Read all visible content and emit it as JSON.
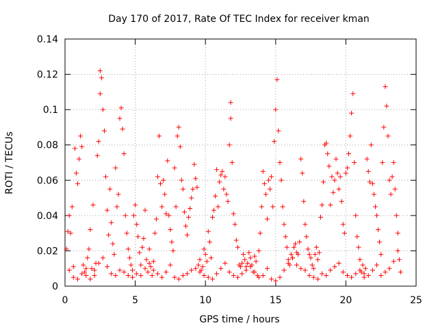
{
  "chart_data": {
    "type": "scatter",
    "title": "Day 170 of 2017, Rate Of TEC Index for receiver kman",
    "xlabel": "GPS time / hours",
    "ylabel": "ROTI / TECUs",
    "xlim": [
      0,
      25
    ],
    "ylim": [
      0,
      0.14
    ],
    "x_ticks": [
      "0",
      "5",
      "10",
      "15",
      "20",
      "25"
    ],
    "y_ticks": [
      "0",
      "0.02",
      "0.04",
      "0.06",
      "0.08",
      "0.1",
      "0.12",
      "0.14"
    ],
    "grid": true,
    "marker": "+",
    "color": "#ff0000",
    "points": [
      [
        0.1,
        0.021
      ],
      [
        0.2,
        0.031
      ],
      [
        0.3,
        0.04
      ],
      [
        0.4,
        0.03
      ],
      [
        0.5,
        0.045
      ],
      [
        0.6,
        0.011
      ],
      [
        0.7,
        0.078
      ],
      [
        0.8,
        0.064
      ],
      [
        0.9,
        0.058
      ],
      [
        1.0,
        0.072
      ],
      [
        1.1,
        0.085
      ],
      [
        1.2,
        0.079
      ],
      [
        1.3,
        0.012
      ],
      [
        1.4,
        0.008
      ],
      [
        1.5,
        0.006
      ],
      [
        1.6,
        0.016
      ],
      [
        1.7,
        0.021
      ],
      [
        1.8,
        0.032
      ],
      [
        1.9,
        0.01
      ],
      [
        2.0,
        0.046
      ],
      [
        2.1,
        0.006
      ],
      [
        2.2,
        0.013
      ],
      [
        2.3,
        0.074
      ],
      [
        2.4,
        0.082
      ],
      [
        2.5,
        0.122
      ],
      [
        2.5,
        0.109
      ],
      [
        2.6,
        0.118
      ],
      [
        2.7,
        0.1
      ],
      [
        2.8,
        0.088
      ],
      [
        2.9,
        0.062
      ],
      [
        3.0,
        0.043
      ],
      [
        3.1,
        0.029
      ],
      [
        3.2,
        0.055
      ],
      [
        3.3,
        0.036
      ],
      [
        3.4,
        0.024
      ],
      [
        3.5,
        0.018
      ],
      [
        3.6,
        0.067
      ],
      [
        3.7,
        0.045
      ],
      [
        3.8,
        0.052
      ],
      [
        3.9,
        0.095
      ],
      [
        4.0,
        0.101
      ],
      [
        4.1,
        0.089
      ],
      [
        4.2,
        0.075
      ],
      [
        4.3,
        0.04
      ],
      [
        4.4,
        0.03
      ],
      [
        4.5,
        0.021
      ],
      [
        4.6,
        0.016
      ],
      [
        4.7,
        0.012
      ],
      [
        4.8,
        0.009
      ],
      [
        4.9,
        0.04
      ],
      [
        5.0,
        0.046
      ],
      [
        5.1,
        0.035
      ],
      [
        5.2,
        0.028
      ],
      [
        5.3,
        0.019
      ],
      [
        5.4,
        0.012
      ],
      [
        5.5,
        0.022
      ],
      [
        5.6,
        0.027
      ],
      [
        5.7,
        0.043
      ],
      [
        5.8,
        0.015
      ],
      [
        5.9,
        0.008
      ],
      [
        6.0,
        0.021
      ],
      [
        6.1,
        0.011
      ],
      [
        6.2,
        0.006
      ],
      [
        6.3,
        0.014
      ],
      [
        6.4,
        0.03
      ],
      [
        6.5,
        0.038
      ],
      [
        6.6,
        0.062
      ],
      [
        6.7,
        0.085
      ],
      [
        6.8,
        0.058
      ],
      [
        6.9,
        0.045
      ],
      [
        7.0,
        0.06
      ],
      [
        7.1,
        0.052
      ],
      [
        7.2,
        0.041
      ],
      [
        7.3,
        0.071
      ],
      [
        7.4,
        0.04
      ],
      [
        7.5,
        0.032
      ],
      [
        7.6,
        0.025
      ],
      [
        7.7,
        0.02
      ],
      [
        7.8,
        0.067
      ],
      [
        7.9,
        0.045
      ],
      [
        8.0,
        0.085
      ],
      [
        8.1,
        0.09
      ],
      [
        8.2,
        0.079
      ],
      [
        8.3,
        0.06
      ],
      [
        8.4,
        0.055
      ],
      [
        8.5,
        0.042
      ],
      [
        8.6,
        0.034
      ],
      [
        8.7,
        0.029
      ],
      [
        8.8,
        0.039
      ],
      [
        8.9,
        0.044
      ],
      [
        9.0,
        0.05
      ],
      [
        9.1,
        0.055
      ],
      [
        9.2,
        0.069
      ],
      [
        9.3,
        0.061
      ],
      [
        9.4,
        0.056
      ],
      [
        9.5,
        0.012
      ],
      [
        9.6,
        0.015
      ],
      [
        9.7,
        0.009
      ],
      [
        9.8,
        0.011
      ],
      [
        9.9,
        0.021
      ],
      [
        10.0,
        0.018
      ],
      [
        10.1,
        0.014
      ],
      [
        10.2,
        0.031
      ],
      [
        10.3,
        0.025
      ],
      [
        10.4,
        0.016
      ],
      [
        10.5,
        0.039
      ],
      [
        10.6,
        0.043
      ],
      [
        10.7,
        0.051
      ],
      [
        10.8,
        0.066
      ],
      [
        10.9,
        0.045
      ],
      [
        11.0,
        0.059
      ],
      [
        11.1,
        0.063
      ],
      [
        11.2,
        0.065
      ],
      [
        11.3,
        0.055
      ],
      [
        11.4,
        0.062
      ],
      [
        11.5,
        0.052
      ],
      [
        11.6,
        0.048
      ],
      [
        11.7,
        0.08
      ],
      [
        11.8,
        0.095
      ],
      [
        11.8,
        0.104
      ],
      [
        11.9,
        0.07
      ],
      [
        12.0,
        0.041
      ],
      [
        12.1,
        0.035
      ],
      [
        12.2,
        0.026
      ],
      [
        12.3,
        0.022
      ],
      [
        12.4,
        0.012
      ],
      [
        12.5,
        0.011
      ],
      [
        12.6,
        0.013
      ],
      [
        12.7,
        0.018
      ],
      [
        12.8,
        0.015
      ],
      [
        12.9,
        0.011
      ],
      [
        13.0,
        0.013
      ],
      [
        13.1,
        0.019
      ],
      [
        13.2,
        0.016
      ],
      [
        13.3,
        0.012
      ],
      [
        13.4,
        0.008
      ],
      [
        13.5,
        0.017
      ],
      [
        13.6,
        0.014
      ],
      [
        13.7,
        0.006
      ],
      [
        13.8,
        0.02
      ],
      [
        13.9,
        0.03
      ],
      [
        14.0,
        0.045
      ],
      [
        14.1,
        0.065
      ],
      [
        14.2,
        0.058
      ],
      [
        14.3,
        0.052
      ],
      [
        14.4,
        0.038
      ],
      [
        14.5,
        0.06
      ],
      [
        14.6,
        0.055
      ],
      [
        14.7,
        0.062
      ],
      [
        14.8,
        0.045
      ],
      [
        14.9,
        0.082
      ],
      [
        15.0,
        0.1
      ],
      [
        15.1,
        0.117
      ],
      [
        15.2,
        0.088
      ],
      [
        15.3,
        0.07
      ],
      [
        15.4,
        0.06
      ],
      [
        15.5,
        0.045
      ],
      [
        15.6,
        0.035
      ],
      [
        15.7,
        0.028
      ],
      [
        15.8,
        0.022
      ],
      [
        15.9,
        0.015
      ],
      [
        16.0,
        0.012
      ],
      [
        16.1,
        0.018
      ],
      [
        16.2,
        0.016
      ],
      [
        16.3,
        0.022
      ],
      [
        16.4,
        0.024
      ],
      [
        16.5,
        0.019
      ],
      [
        16.6,
        0.018
      ],
      [
        16.7,
        0.025
      ],
      [
        16.8,
        0.072
      ],
      [
        16.9,
        0.064
      ],
      [
        17.0,
        0.048
      ],
      [
        17.1,
        0.035
      ],
      [
        17.2,
        0.028
      ],
      [
        17.3,
        0.021
      ],
      [
        17.4,
        0.018
      ],
      [
        17.5,
        0.016
      ],
      [
        17.6,
        0.012
      ],
      [
        17.7,
        0.01
      ],
      [
        17.8,
        0.018
      ],
      [
        17.9,
        0.022
      ],
      [
        18.0,
        0.015
      ],
      [
        18.1,
        0.019
      ],
      [
        18.2,
        0.039
      ],
      [
        18.3,
        0.046
      ],
      [
        18.4,
        0.059
      ],
      [
        18.5,
        0.08
      ],
      [
        18.6,
        0.081
      ],
      [
        18.7,
        0.075
      ],
      [
        18.8,
        0.068
      ],
      [
        18.9,
        0.046
      ],
      [
        19.0,
        0.062
      ],
      [
        19.1,
        0.053
      ],
      [
        19.2,
        0.06
      ],
      [
        19.3,
        0.072
      ],
      [
        19.4,
        0.064
      ],
      [
        19.5,
        0.055
      ],
      [
        19.6,
        0.062
      ],
      [
        19.7,
        0.048
      ],
      [
        19.8,
        0.035
      ],
      [
        19.9,
        0.03
      ],
      [
        20.0,
        0.064
      ],
      [
        20.1,
        0.067
      ],
      [
        20.2,
        0.075
      ],
      [
        20.3,
        0.085
      ],
      [
        20.4,
        0.098
      ],
      [
        20.5,
        0.109
      ],
      [
        20.6,
        0.07
      ],
      [
        20.7,
        0.04
      ],
      [
        20.8,
        0.028
      ],
      [
        20.9,
        0.022
      ],
      [
        21.0,
        0.015
      ],
      [
        21.1,
        0.008
      ],
      [
        21.2,
        0.012
      ],
      [
        21.3,
        0.007
      ],
      [
        21.4,
        0.01
      ],
      [
        21.5,
        0.072
      ],
      [
        21.6,
        0.065
      ],
      [
        21.7,
        0.059
      ],
      [
        21.8,
        0.08
      ],
      [
        21.9,
        0.058
      ],
      [
        22.0,
        0.052
      ],
      [
        22.1,
        0.045
      ],
      [
        22.2,
        0.04
      ],
      [
        22.3,
        0.032
      ],
      [
        22.4,
        0.025
      ],
      [
        22.5,
        0.018
      ],
      [
        22.6,
        0.07
      ],
      [
        22.7,
        0.09
      ],
      [
        22.8,
        0.113
      ],
      [
        22.9,
        0.102
      ],
      [
        23.0,
        0.085
      ],
      [
        23.1,
        0.06
      ],
      [
        23.2,
        0.052
      ],
      [
        23.3,
        0.062
      ],
      [
        23.4,
        0.07
      ],
      [
        23.5,
        0.055
      ],
      [
        23.6,
        0.04
      ],
      [
        23.7,
        0.03
      ],
      [
        23.8,
        0.015
      ],
      [
        23.9,
        0.008
      ],
      [
        0.3,
        0.009
      ],
      [
        0.6,
        0.005
      ],
      [
        0.9,
        0.004
      ],
      [
        1.2,
        0.007
      ],
      [
        1.5,
        0.01
      ],
      [
        1.8,
        0.004
      ],
      [
        2.1,
        0.009
      ],
      [
        2.4,
        0.013
      ],
      [
        2.7,
        0.016
      ],
      [
        3.0,
        0.011
      ],
      [
        3.3,
        0.007
      ],
      [
        3.6,
        0.006
      ],
      [
        3.9,
        0.009
      ],
      [
        4.2,
        0.008
      ],
      [
        4.5,
        0.006
      ],
      [
        4.8,
        0.005
      ],
      [
        5.1,
        0.007
      ],
      [
        5.4,
        0.006
      ],
      [
        5.7,
        0.01
      ],
      [
        6.0,
        0.013
      ],
      [
        6.3,
        0.009
      ],
      [
        6.6,
        0.007
      ],
      [
        6.9,
        0.005
      ],
      [
        7.2,
        0.008
      ],
      [
        7.5,
        0.012
      ],
      [
        7.8,
        0.005
      ],
      [
        8.1,
        0.004
      ],
      [
        8.4,
        0.006
      ],
      [
        8.7,
        0.007
      ],
      [
        9.0,
        0.009
      ],
      [
        9.3,
        0.01
      ],
      [
        9.6,
        0.008
      ],
      [
        9.9,
        0.006
      ],
      [
        10.2,
        0.005
      ],
      [
        10.5,
        0.004
      ],
      [
        10.8,
        0.007
      ],
      [
        11.1,
        0.01
      ],
      [
        11.4,
        0.013
      ],
      [
        11.7,
        0.008
      ],
      [
        12.0,
        0.006
      ],
      [
        12.3,
        0.005
      ],
      [
        12.6,
        0.007
      ],
      [
        12.9,
        0.009
      ],
      [
        13.2,
        0.011
      ],
      [
        13.5,
        0.008
      ],
      [
        13.8,
        0.005
      ],
      [
        14.1,
        0.006
      ],
      [
        14.4,
        0.01
      ],
      [
        14.7,
        0.004
      ],
      [
        15.0,
        0.003
      ],
      [
        15.3,
        0.005
      ],
      [
        15.6,
        0.009
      ],
      [
        15.9,
        0.013
      ],
      [
        16.2,
        0.016
      ],
      [
        16.5,
        0.012
      ],
      [
        16.8,
        0.01
      ],
      [
        17.1,
        0.009
      ],
      [
        17.4,
        0.006
      ],
      [
        17.7,
        0.005
      ],
      [
        18.0,
        0.004
      ],
      [
        18.3,
        0.007
      ],
      [
        18.6,
        0.006
      ],
      [
        18.9,
        0.009
      ],
      [
        19.2,
        0.011
      ],
      [
        19.5,
        0.013
      ],
      [
        19.8,
        0.008
      ],
      [
        20.1,
        0.006
      ],
      [
        20.4,
        0.005
      ],
      [
        20.7,
        0.007
      ],
      [
        21.0,
        0.009
      ],
      [
        21.3,
        0.005
      ],
      [
        21.6,
        0.006
      ],
      [
        21.9,
        0.009
      ],
      [
        22.2,
        0.012
      ],
      [
        22.5,
        0.006
      ],
      [
        22.8,
        0.008
      ],
      [
        23.1,
        0.01
      ],
      [
        23.4,
        0.014
      ],
      [
        23.7,
        0.02
      ]
    ]
  }
}
